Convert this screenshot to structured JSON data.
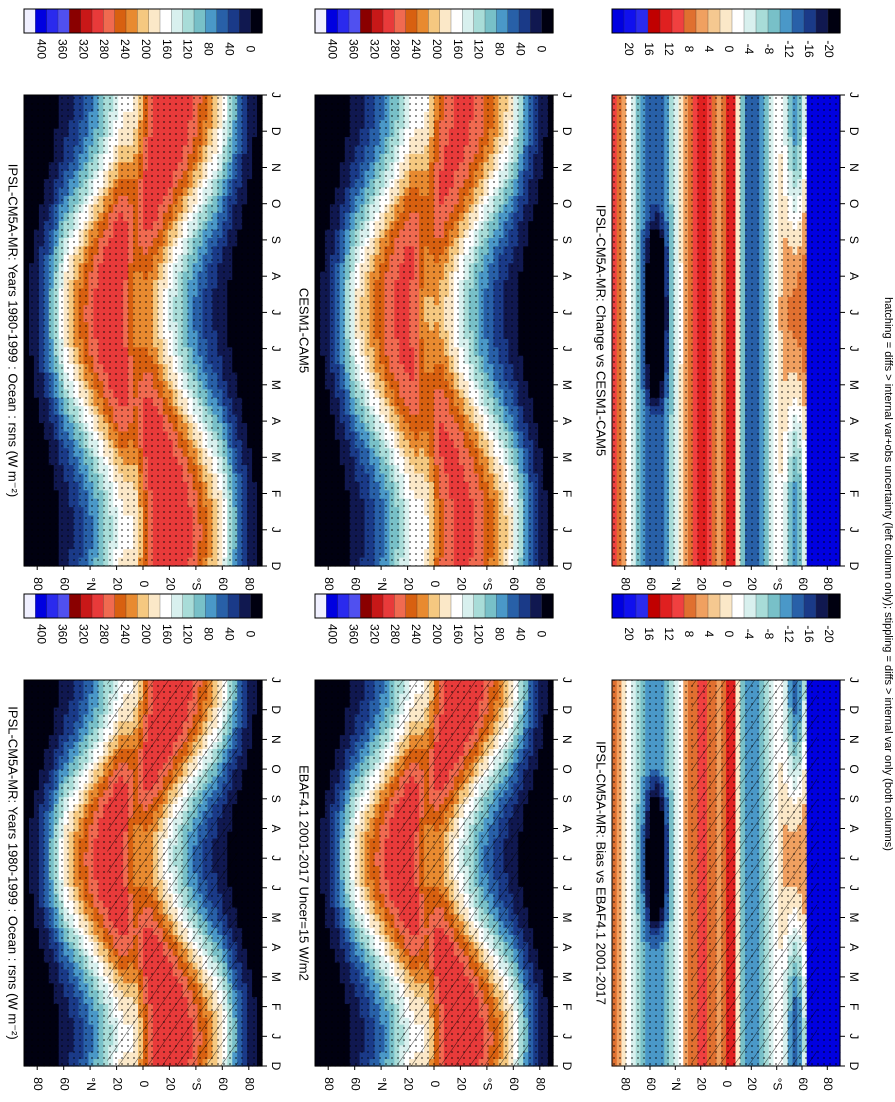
{
  "figure": {
    "orientation": "rotated 90 degrees clockwise",
    "footnote": "hatching = diffs > internal var+obs uncertainty (left column only); stippling = diffs > internal var only (both columns)"
  },
  "colors": {
    "abs_scale": [
      "#f0f0ff",
      "#0000e0",
      "#2a2aee",
      "#5050f0",
      "#8a0000",
      "#c81818",
      "#e83a3a",
      "#f06a50",
      "#d86010",
      "#e88a30",
      "#f5c880",
      "#fbe8c8",
      "#ffffff",
      "#d8f0ee",
      "#a8dcd8",
      "#78c0c8",
      "#4a98c8",
      "#2860a8",
      "#1a3a88",
      "#101850",
      "#000010"
    ],
    "diff_scale": [
      "#0000e0",
      "#1010ee",
      "#2a2aee",
      "#c00000",
      "#e02020",
      "#f04040",
      "#e07030",
      "#f0a060",
      "#f5c890",
      "#fbe8c8",
      "#ffffff",
      "#d8f0ee",
      "#a8dcd8",
      "#78c0c8",
      "#4a98c8",
      "#2860a8",
      "#1a3a88",
      "#101850",
      "#000010"
    ]
  },
  "chart_data": [
    {
      "id": "p1",
      "type": "heatmap",
      "title": "IPSL-CM5A-MR: Years 1980-1999 : Ocean : rsns (W m⁻²)",
      "field": "rsns",
      "units": "W m-2",
      "x": [
        "D",
        "J",
        "F",
        "M",
        "A",
        "M",
        "J",
        "J",
        "A",
        "S",
        "O",
        "N",
        "D",
        "J"
      ],
      "ylabels": [
        "80",
        "60",
        "°N",
        "20",
        "0",
        "20",
        "°S",
        "60",
        "80"
      ],
      "colorbar_ticks": [
        "400",
        "360",
        "320",
        "280",
        "240",
        "200",
        "160",
        "120",
        "80",
        "40",
        "0"
      ],
      "hatching": true,
      "stippling": true
    },
    {
      "id": "p2",
      "type": "heatmap",
      "title": "IPSL-CM5A-MR: Years 1980-1999 : Ocean : rsns (W m⁻²)",
      "field": "rsns",
      "units": "W m-2",
      "x": [
        "D",
        "J",
        "F",
        "M",
        "A",
        "M",
        "J",
        "J",
        "A",
        "S",
        "O",
        "N",
        "D",
        "J"
      ],
      "ylabels": [
        "80",
        "60",
        "°N",
        "20",
        "0",
        "20",
        "°S",
        "60",
        "80"
      ],
      "colorbar_ticks": [
        "400",
        "360",
        "320",
        "280",
        "240",
        "200",
        "160",
        "120",
        "80",
        "40",
        "0"
      ],
      "hatching": false,
      "stippling": true
    },
    {
      "id": "p3",
      "type": "heatmap",
      "title": "EBAF4.1 2001-2017 Uncer=15 W/m2",
      "field": "rsns",
      "units": "W m-2",
      "x": [
        "D",
        "J",
        "F",
        "M",
        "A",
        "M",
        "J",
        "J",
        "A",
        "S",
        "O",
        "N",
        "D",
        "J"
      ],
      "ylabels": [
        "80",
        "60",
        "°N",
        "20",
        "0",
        "20",
        "°S",
        "60",
        "80"
      ],
      "colorbar_ticks": [
        "400",
        "360",
        "320",
        "280",
        "240",
        "200",
        "160",
        "120",
        "80",
        "40",
        "0"
      ],
      "hatching": true,
      "stippling": true
    },
    {
      "id": "p4",
      "type": "heatmap",
      "title": "CESM1-CAM5",
      "field": "rsns",
      "units": "W m-2",
      "x": [
        "D",
        "J",
        "F",
        "M",
        "A",
        "M",
        "J",
        "J",
        "A",
        "S",
        "O",
        "N",
        "D",
        "J"
      ],
      "ylabels": [
        "80",
        "60",
        "°N",
        "20",
        "0",
        "20",
        "°S",
        "60",
        "80"
      ],
      "colorbar_ticks": [
        "400",
        "360",
        "320",
        "280",
        "240",
        "200",
        "160",
        "120",
        "80",
        "40",
        "0"
      ],
      "hatching": false,
      "stippling": true
    },
    {
      "id": "p5",
      "type": "heatmap",
      "title": "IPSL-CM5A-MR: Bias vs EBAF4.1 2001-2017",
      "field": "rsns bias",
      "units": "W m-2",
      "x": [
        "D",
        "J",
        "F",
        "M",
        "A",
        "M",
        "J",
        "J",
        "A",
        "S",
        "O",
        "N",
        "D",
        "J"
      ],
      "ylabels": [
        "80",
        "60",
        "°N",
        "20",
        "0",
        "20",
        "°S",
        "60",
        "80"
      ],
      "colorbar_ticks": [
        "20",
        "16",
        "12",
        "8",
        "4",
        "0",
        "-4",
        "-8",
        "-12",
        "-16",
        "-20"
      ],
      "hatching": true,
      "stippling": true
    },
    {
      "id": "p6",
      "type": "heatmap",
      "title": "IPSL-CM5A-MR: Change vs CESM1-CAM5",
      "field": "rsns change",
      "units": "W m-2",
      "x": [
        "D",
        "J",
        "F",
        "M",
        "A",
        "M",
        "J",
        "J",
        "A",
        "S",
        "O",
        "N",
        "D",
        "J"
      ],
      "ylabels": [
        "80",
        "60",
        "°N",
        "20",
        "0",
        "20",
        "°S",
        "60",
        "80"
      ],
      "colorbar_ticks": [
        "20",
        "16",
        "12",
        "8",
        "4",
        "0",
        "-4",
        "-8",
        "-12",
        "-16",
        "-20"
      ],
      "hatching": false,
      "stippling": true
    }
  ]
}
